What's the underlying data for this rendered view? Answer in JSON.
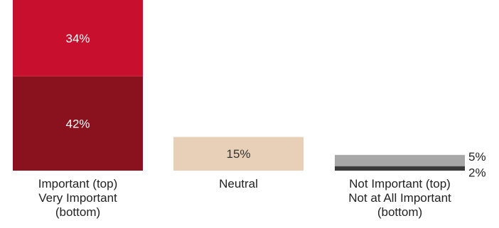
{
  "chart_data": {
    "type": "bar",
    "stacked": true,
    "categories": [
      {
        "label": "Important (top)\nVery Important\n(bottom)",
        "segments": [
          {
            "value": 42,
            "label": "42%",
            "color": "#8a111e",
            "label_color": "#ffffff",
            "label_position": "inside"
          },
          {
            "value": 34,
            "label": "34%",
            "color": "#c8102e",
            "label_color": "#ffffff",
            "label_position": "inside"
          }
        ]
      },
      {
        "label": "Neutral",
        "segments": [
          {
            "value": 15,
            "label": "15%",
            "color": "#e8d0b8",
            "label_color": "#333333",
            "label_position": "inside"
          }
        ]
      },
      {
        "label": "Not Important (top)\nNot at All Important\n(bottom)",
        "segments": [
          {
            "value": 2,
            "label": "2%",
            "color": "#3a3a3a",
            "label_color": "#222222",
            "label_position": "right"
          },
          {
            "value": 5,
            "label": "5%",
            "color": "#a7a7a7",
            "label_color": "#222222",
            "label_position": "right"
          }
        ]
      }
    ],
    "ylim": [
      0,
      76
    ],
    "grid": false,
    "title": "",
    "xlabel": "",
    "ylabel": ""
  }
}
